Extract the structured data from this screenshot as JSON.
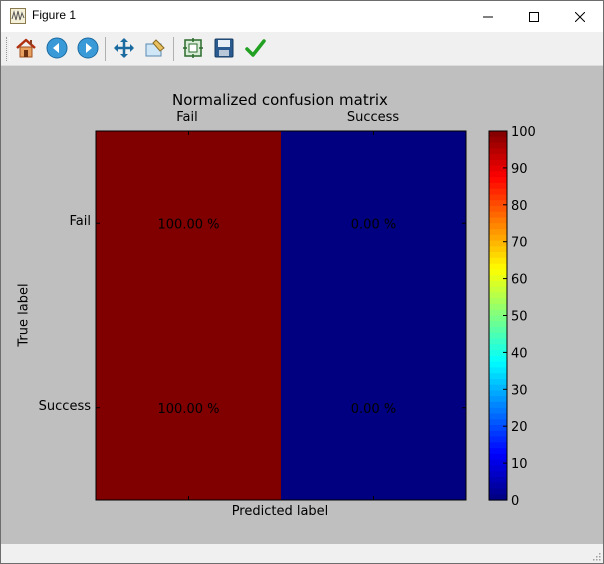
{
  "window": {
    "title": "Figure 1"
  },
  "toolbar": {
    "buttons": [
      {
        "name": "home",
        "icon": "home-icon"
      },
      {
        "name": "back",
        "icon": "back-arrow-icon"
      },
      {
        "name": "forward",
        "icon": "forward-arrow-icon"
      },
      {
        "name": "pan",
        "icon": "move-arrows-icon"
      },
      {
        "name": "zoom",
        "icon": "zoom-rect-icon"
      },
      {
        "name": "subplots",
        "icon": "subplots-config-icon"
      },
      {
        "name": "save",
        "icon": "floppy-disk-icon"
      },
      {
        "name": "edit",
        "icon": "checkmark-icon"
      }
    ]
  },
  "chart_data": {
    "type": "heatmap",
    "title": "Normalized confusion matrix",
    "xlabel": "Predicted label",
    "ylabel": "True label",
    "x_categories": [
      "Fail",
      "Success"
    ],
    "y_categories": [
      "Fail",
      "Success"
    ],
    "values": [
      [
        100.0,
        0.0
      ],
      [
        100.0,
        0.0
      ]
    ],
    "cell_labels": [
      [
        "100.00 %",
        "0.00 %"
      ],
      [
        "100.00 %",
        "0.00 %"
      ]
    ],
    "colormap": "jet",
    "colorbar": {
      "min": 0,
      "max": 100,
      "ticks": [
        "0",
        "10",
        "20",
        "30",
        "40",
        "50",
        "60",
        "70",
        "80",
        "90",
        "100"
      ]
    },
    "cell_colors": {
      "high": "#800000",
      "low": "#000080"
    }
  }
}
